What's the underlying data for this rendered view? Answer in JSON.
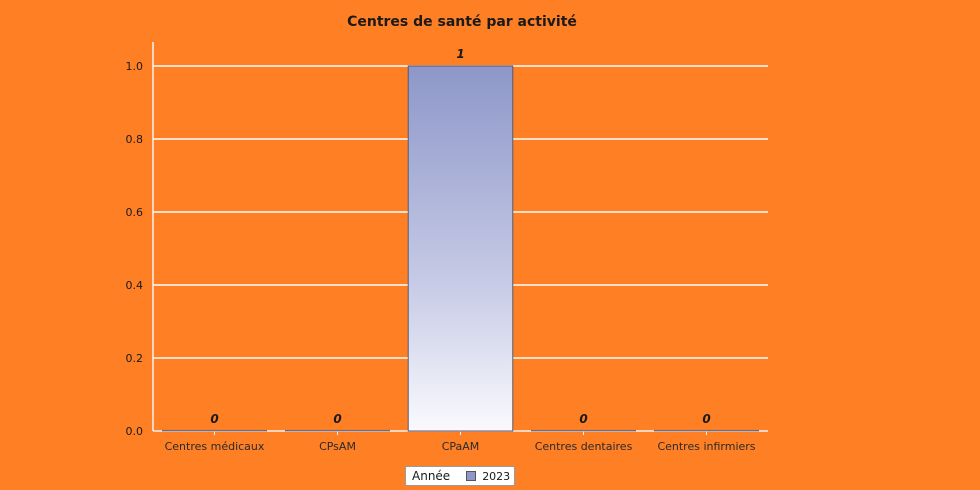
{
  "chart_data": {
    "type": "bar",
    "title": "Centres de santé par activité",
    "categories": [
      "Centres médicaux",
      "CPsAM",
      "CPaAM",
      "Centres dentaires",
      "Centres infirmiers"
    ],
    "series": [
      {
        "name": "2023",
        "values": [
          0,
          0,
          1,
          0,
          0
        ],
        "color": "#8d97c8"
      }
    ],
    "data_labels": [
      "0",
      "0",
      "1",
      "0",
      "0"
    ],
    "ylim": [
      0,
      1.0
    ],
    "yticks": [
      "0.0",
      "0.2",
      "0.4",
      "0.6",
      "0.8",
      "1.0"
    ],
    "grid": true,
    "legend": {
      "title": "Année",
      "placement": "bottom-center"
    },
    "background_color": "#ff7f24",
    "grid_color": "#ffffff",
    "bar_color": "#8d97c8"
  }
}
